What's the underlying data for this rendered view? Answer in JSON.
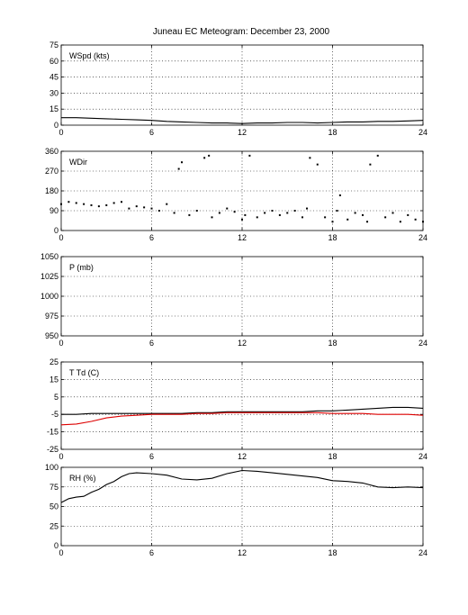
{
  "title": "Juneau EC Meteogram:   December 23, 2000",
  "chart_data": [
    {
      "type": "line",
      "label": "WSpd (kts)",
      "ylim": [
        0,
        75
      ],
      "yticks": [
        0,
        15,
        30,
        45,
        60,
        75
      ],
      "xlim": [
        0,
        24
      ],
      "xticks": [
        0,
        6,
        12,
        18,
        24
      ],
      "grid": true,
      "series": [
        {
          "color": "#000000",
          "x": [
            0,
            1,
            2,
            3,
            4,
            5,
            6,
            7,
            8,
            9,
            10,
            11,
            12,
            13,
            14,
            15,
            16,
            17,
            18,
            19,
            20,
            21,
            22,
            23,
            24
          ],
          "y": [
            7,
            7,
            6.5,
            6,
            5.5,
            5,
            4.5,
            3.5,
            3,
            2.5,
            2,
            2,
            1.5,
            2,
            2,
            2.5,
            2.5,
            2,
            2.5,
            3,
            3,
            3.5,
            3.5,
            4,
            4.5
          ]
        }
      ]
    },
    {
      "type": "scatter",
      "label": "WDir",
      "ylim": [
        0,
        360
      ],
      "yticks": [
        0,
        90,
        180,
        270,
        360
      ],
      "xlim": [
        0,
        24
      ],
      "xticks": [
        0,
        6,
        12,
        18,
        24
      ],
      "grid": true,
      "series": [
        {
          "color": "#000000",
          "x": [
            0,
            0.5,
            1,
            1.5,
            2,
            2.5,
            3,
            3.5,
            4,
            4.5,
            5,
            5.5,
            6,
            6.5,
            7,
            7.5,
            7.8,
            8,
            8.5,
            9,
            9.5,
            9.8,
            10,
            10.5,
            11,
            11.5,
            12,
            12.2,
            12.5,
            13,
            13.5,
            14,
            14.5,
            15,
            15.5,
            16,
            16.3,
            16.5,
            17,
            17.5,
            18,
            18.3,
            18.5,
            19,
            19.5,
            20,
            20.3,
            20.5,
            21,
            21.5,
            22,
            22.5,
            23,
            23.5,
            24
          ],
          "y": [
            120,
            130,
            125,
            120,
            115,
            110,
            115,
            125,
            130,
            100,
            110,
            105,
            100,
            90,
            120,
            80,
            280,
            310,
            70,
            90,
            330,
            340,
            60,
            80,
            100,
            85,
            50,
            70,
            340,
            60,
            80,
            90,
            70,
            80,
            90,
            60,
            100,
            330,
            300,
            60,
            40,
            90,
            160,
            50,
            80,
            70,
            40,
            300,
            340,
            60,
            80,
            40,
            70,
            50,
            40
          ]
        }
      ]
    },
    {
      "type": "line",
      "label": "P (mb)",
      "ylim": [
        950,
        1050
      ],
      "yticks": [
        950,
        975,
        1000,
        1025,
        1050
      ],
      "xlim": [
        0,
        24
      ],
      "xticks": [
        0,
        6,
        12,
        18,
        24
      ],
      "grid": true,
      "series": []
    },
    {
      "type": "line",
      "label": "T Td (C)",
      "ylim": [
        -25,
        25
      ],
      "yticks": [
        -25,
        -15,
        -5,
        5,
        15,
        25
      ],
      "xlim": [
        0,
        24
      ],
      "xticks": [
        0,
        6,
        12,
        18,
        24
      ],
      "grid": true,
      "series": [
        {
          "color": "#000000",
          "x": [
            0,
            1,
            2,
            3,
            4,
            5,
            6,
            7,
            8,
            9,
            10,
            11,
            12,
            13,
            14,
            15,
            16,
            17,
            18,
            19,
            20,
            21,
            22,
            23,
            24
          ],
          "y": [
            -5,
            -5,
            -4.5,
            -4.5,
            -4.5,
            -4.5,
            -4.5,
            -4.5,
            -4.5,
            -4,
            -4,
            -3.5,
            -3.5,
            -3.5,
            -3.5,
            -3.5,
            -3.5,
            -3,
            -3,
            -2.5,
            -2,
            -1.5,
            -1,
            -1,
            -1.5
          ]
        },
        {
          "color": "#dd0000",
          "x": [
            0,
            1,
            2,
            3,
            4,
            5,
            6,
            7,
            8,
            9,
            10,
            11,
            12,
            13,
            14,
            15,
            16,
            17,
            18,
            19,
            20,
            21,
            22,
            23,
            24
          ],
          "y": [
            -11,
            -10.5,
            -9,
            -7,
            -6,
            -5.5,
            -5,
            -5,
            -5,
            -4.5,
            -4.5,
            -4,
            -4,
            -4,
            -4,
            -4,
            -4,
            -4,
            -4.5,
            -4.5,
            -4.5,
            -5,
            -5,
            -5,
            -5.5
          ]
        }
      ]
    },
    {
      "type": "line",
      "label": "RH (%)",
      "ylim": [
        0,
        100
      ],
      "yticks": [
        0,
        25,
        50,
        75,
        100
      ],
      "xlim": [
        0,
        24
      ],
      "xticks": [
        0,
        6,
        12,
        18,
        24
      ],
      "grid": true,
      "series": [
        {
          "color": "#000000",
          "x": [
            0,
            0.5,
            1,
            1.5,
            2,
            2.5,
            3,
            3.5,
            4,
            4.5,
            5,
            6,
            7,
            8,
            9,
            10,
            11,
            12,
            13,
            14,
            15,
            16,
            17,
            18,
            19,
            20,
            21,
            22,
            23,
            24
          ],
          "y": [
            55,
            60,
            62,
            63,
            68,
            72,
            78,
            82,
            88,
            92,
            93,
            92,
            90,
            85,
            84,
            86,
            92,
            96,
            95,
            93,
            91,
            89,
            87,
            83,
            82,
            80,
            75,
            74,
            75,
            74
          ]
        }
      ]
    }
  ]
}
